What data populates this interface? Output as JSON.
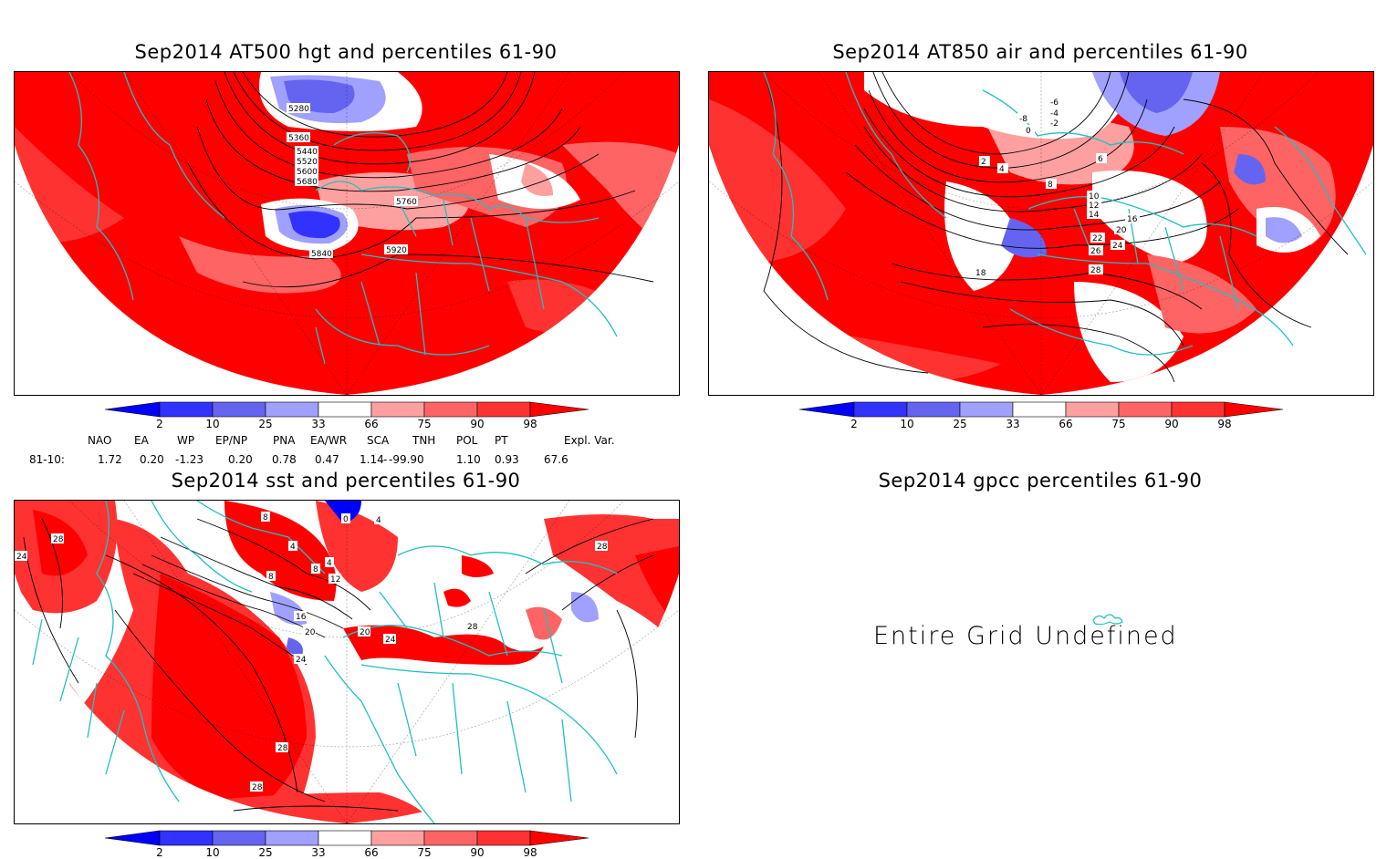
{
  "panels": {
    "hgt": {
      "title": "Sep2014 AT500 hgt and percentiles 61-90",
      "contour_labels": [
        "5280",
        "5360",
        "5440",
        "5520",
        "5600",
        "5680",
        "5760",
        "5840",
        "5920"
      ]
    },
    "air": {
      "title": "Sep2014 AT850 air and percentiles 61-90",
      "contour_labels": [
        "-8",
        "-6",
        "-4",
        "-2",
        "0",
        "2",
        "4",
        "6",
        "8",
        "10",
        "12",
        "14",
        "16",
        "18",
        "20",
        "22",
        "24",
        "26",
        "28"
      ]
    },
    "sst": {
      "title": "Sep2014 sst and percentiles 61-90",
      "contour_labels": [
        "0",
        "4",
        "8",
        "12",
        "16",
        "20",
        "24",
        "28"
      ]
    },
    "gpcc": {
      "title": "Sep2014 gpcc percentiles 61-90",
      "message": "Entire Grid Undefined"
    }
  },
  "colorbar": {
    "ticks": [
      "2",
      "10",
      "25",
      "33",
      "66",
      "75",
      "90",
      "98"
    ],
    "colors": [
      "#0000ff",
      "#3232ff",
      "#6464f0",
      "#a0a0ff",
      "#ffffff",
      "#ffa0a0",
      "#ff6464",
      "#ff3232",
      "#ff0000"
    ]
  },
  "teleconnections": {
    "headers": [
      "NAO",
      "EA",
      "WP",
      "EP/NP",
      "PNA",
      "EA/WR",
      "SCA",
      "TNH",
      "POL",
      "PT",
      "Expl. Var."
    ],
    "row_label": "81-10:",
    "values": [
      "1.72",
      "0.20",
      "-1.23",
      "0.20",
      "0.78",
      "0.47",
      "1.14",
      "-99.90",
      "1.10",
      "0.93",
      "67.6"
    ]
  },
  "colors": {
    "land_outline": "#20c0c0",
    "red": "#ff0000",
    "light_red": "#ff6464",
    "pink": "#ffa0a0",
    "blue": "#3232ff",
    "light_blue": "#8c8cf5"
  }
}
